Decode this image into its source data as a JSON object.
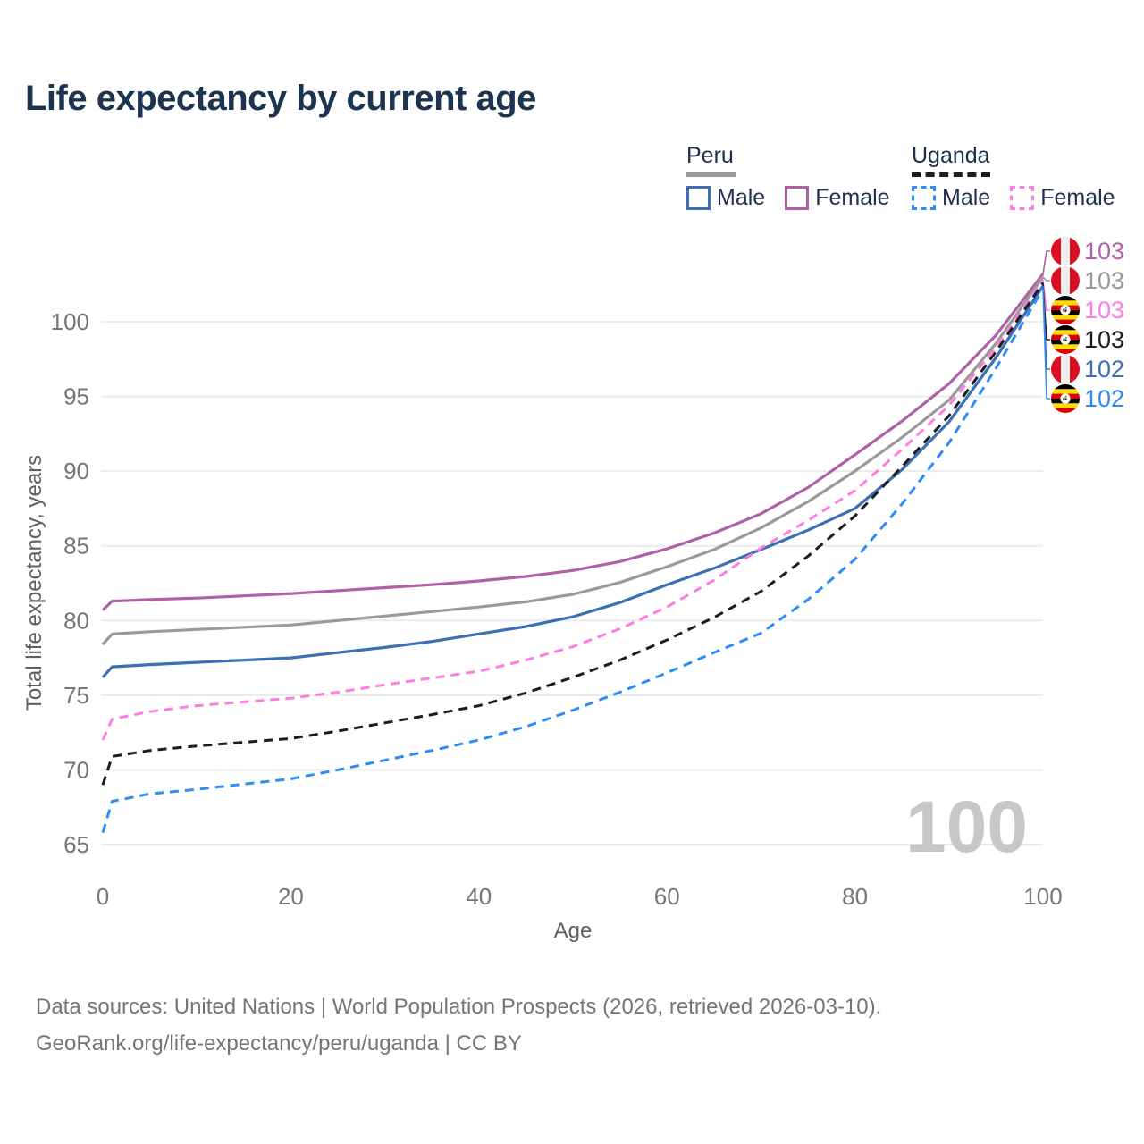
{
  "title": "Life expectancy by current age",
  "watermark_age": "100",
  "legend": {
    "groups": [
      {
        "title": "Peru",
        "line_style": "solid",
        "underline_color": "#9a9a9b",
        "items": [
          {
            "label": "Male",
            "color": "#3d6fb4"
          },
          {
            "label": "Female",
            "color": "#ae62a5"
          }
        ]
      },
      {
        "title": "Uganda",
        "line_style": "dashed",
        "underline_color": "#1c1c1c",
        "items": [
          {
            "label": "Male",
            "color": "#2e8cf6"
          },
          {
            "label": "Female",
            "color": "#ff7ce1"
          }
        ]
      }
    ]
  },
  "chart_data": {
    "type": "line",
    "title": "Life expectancy by current age",
    "xlabel": "Age",
    "ylabel": "Total life expectancy, years",
    "xlim": [
      0,
      100
    ],
    "ylim": [
      65,
      103.5
    ],
    "x_ticks": [
      0,
      20,
      40,
      60,
      80,
      100
    ],
    "y_ticks": [
      65,
      70,
      75,
      80,
      85,
      90,
      95,
      100
    ],
    "grid": "horizontal",
    "legend_position": "top-right",
    "x": [
      0,
      1,
      5,
      10,
      15,
      20,
      25,
      30,
      35,
      40,
      45,
      50,
      55,
      60,
      65,
      70,
      75,
      80,
      85,
      90,
      95,
      100
    ],
    "series": [
      {
        "name": "Peru Female",
        "country": "peru",
        "sex": "female",
        "style": "solid",
        "color": "#ae62a5",
        "end_label": "103",
        "values": [
          80.7,
          81.3,
          81.4,
          81.5,
          81.65,
          81.8,
          82.0,
          82.2,
          82.4,
          82.65,
          82.95,
          83.35,
          83.95,
          84.8,
          85.85,
          87.15,
          88.9,
          91.1,
          93.35,
          95.85,
          99.1,
          103.2
        ]
      },
      {
        "name": "Peru Both sexes",
        "country": "peru",
        "sex": "both",
        "style": "solid",
        "color": "#9a9a9b",
        "end_label": "103",
        "values": [
          78.4,
          79.1,
          79.25,
          79.4,
          79.55,
          79.7,
          80.0,
          80.3,
          80.6,
          80.9,
          81.25,
          81.75,
          82.55,
          83.6,
          84.75,
          86.2,
          87.95,
          90.0,
          92.25,
          94.75,
          98.55,
          103.0
        ]
      },
      {
        "name": "Uganda Female",
        "country": "uganda",
        "sex": "female",
        "style": "dashed",
        "color": "#ff7ce1",
        "end_label": "103",
        "values": [
          72.0,
          73.4,
          73.9,
          74.3,
          74.55,
          74.8,
          75.2,
          75.7,
          76.15,
          76.6,
          77.35,
          78.25,
          79.45,
          80.9,
          82.7,
          84.85,
          86.7,
          88.7,
          91.45,
          94.4,
          98.3,
          102.8
        ]
      },
      {
        "name": "Uganda Both sexes",
        "country": "uganda",
        "sex": "both",
        "style": "dashed",
        "color": "#1c1c1c",
        "end_label": "103",
        "values": [
          69.0,
          70.9,
          71.3,
          71.6,
          71.85,
          72.1,
          72.6,
          73.15,
          73.7,
          74.3,
          75.15,
          76.2,
          77.35,
          78.7,
          80.2,
          81.95,
          84.3,
          87.0,
          90.3,
          93.7,
          98.0,
          102.6
        ]
      },
      {
        "name": "Peru Male",
        "country": "peru",
        "sex": "male",
        "style": "solid",
        "color": "#3d6fb4",
        "end_label": "102",
        "values": [
          76.2,
          76.9,
          77.05,
          77.2,
          77.35,
          77.5,
          77.85,
          78.2,
          78.6,
          79.1,
          79.6,
          80.25,
          81.2,
          82.4,
          83.5,
          84.75,
          86.05,
          87.5,
          90.1,
          93.3,
          97.6,
          102.4
        ]
      },
      {
        "name": "Uganda Male",
        "country": "uganda",
        "sex": "male",
        "style": "dashed",
        "color": "#2e8cf6",
        "end_label": "102",
        "values": [
          65.8,
          67.9,
          68.4,
          68.7,
          69.05,
          69.4,
          70.0,
          70.65,
          71.3,
          72.0,
          72.9,
          74.0,
          75.2,
          76.5,
          77.85,
          79.15,
          81.4,
          84.1,
          87.8,
          91.9,
          96.9,
          102.2
        ]
      }
    ]
  },
  "footer": {
    "line1": "Data sources: United Nations | World Population Prospects (2026, retrieved 2026-03-10).",
    "line2": "GeoRank.org/life-expectancy/peru/uganda | CC BY"
  }
}
